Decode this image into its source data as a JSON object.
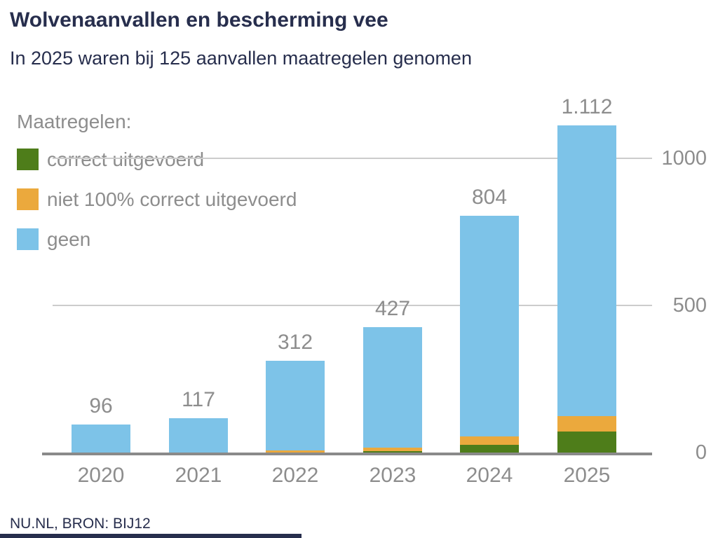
{
  "title": "Wolvenaanvallen en bescherming vee",
  "subtitle": "In 2025 waren bij 125 aanvallen maatregelen genomen",
  "footer": "NU.NL, BRON: BIJ12",
  "colors": {
    "navy": "#272e4d",
    "gray_text": "#8d8d8d",
    "gridline": "#cccccc",
    "axis": "#8a8a8a",
    "green": "#4e7d1a",
    "orange": "#eba93d",
    "blue": "#7dc3e8"
  },
  "legend": {
    "heading": "Maatregelen:",
    "items": [
      {
        "label": "correct uitgevoerd",
        "color": "#4e7d1a"
      },
      {
        "label": "niet 100% correct uitgevoerd",
        "color": "#eba93d"
      },
      {
        "label": "geen",
        "color": "#7dc3e8"
      }
    ]
  },
  "chart_data": {
    "type": "bar",
    "stacked": true,
    "title": "Wolvenaanvallen en bescherming vee",
    "categories": [
      "2020",
      "2021",
      "2022",
      "2023",
      "2024",
      "2025"
    ],
    "series": [
      {
        "name": "correct uitgevoerd",
        "color": "#4e7d1a",
        "values": [
          0,
          0,
          0,
          5,
          26,
          71
        ]
      },
      {
        "name": "niet 100% correct uitgevoerd",
        "color": "#eba93d",
        "values": [
          0,
          0,
          7,
          11,
          28,
          54
        ]
      },
      {
        "name": "geen",
        "color": "#7dc3e8",
        "values": [
          96,
          117,
          305,
          411,
          750,
          987
        ]
      }
    ],
    "totals": [
      96,
      117,
      312,
      427,
      804,
      1112
    ],
    "total_labels": [
      "96",
      "117",
      "312",
      "427",
      "804",
      "1.112"
    ],
    "y_ticks": [
      {
        "value": 0,
        "label": "0"
      },
      {
        "value": 500,
        "label": "500"
      },
      {
        "value": 1000,
        "label": "1000"
      }
    ],
    "ylim": [
      0,
      1140
    ],
    "grid": "horizontal-at-500-and-1000",
    "legend_position": "top-left",
    "annotation_note": "totals shown above bars; thousands separator is a dot"
  }
}
